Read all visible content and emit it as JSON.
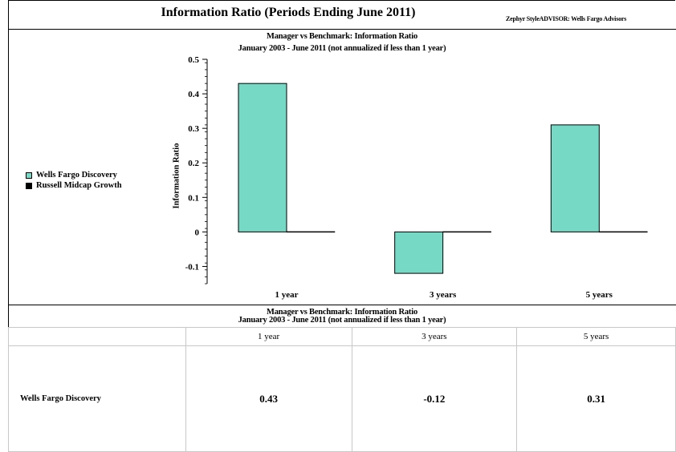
{
  "header": {
    "title": "Information Ratio (Periods Ending June 2011)",
    "brand": "Zephyr StyleADVISOR: Wells Fargo Advisors"
  },
  "chart_subtitle": {
    "line1": "Manager vs Benchmark: Information Ratio",
    "line2": "January 2003 - June 2011 (not annualized if less than 1 year)"
  },
  "table_subtitle": {
    "line1": "Manager vs Benchmark: Information Ratio",
    "line2": "January 2003 - June 2011 (not annualized if less than 1 year)"
  },
  "colors": {
    "fund": "#76d9c6",
    "benchmark": "#000000"
  },
  "chart_data": {
    "type": "bar",
    "title": "Manager vs Benchmark: Information Ratio",
    "subtitle": "January 2003 - June 2011 (not annualized if less than 1 year)",
    "xlabel": "",
    "ylabel": "Information Ratio",
    "categories": [
      "1 year",
      "3 years",
      "5 years"
    ],
    "series": [
      {
        "name": "Wells Fargo Discovery",
        "values": [
          0.43,
          -0.12,
          0.31
        ]
      },
      {
        "name": "Russell Midcap Growth",
        "values": [
          0,
          0,
          0
        ]
      }
    ],
    "ylim": [
      -0.15,
      0.5
    ],
    "yticks": [
      "0.5",
      "0.4",
      "0.3",
      "0.2",
      "0.1",
      "0",
      "-0.1"
    ],
    "legend": "left"
  },
  "table": {
    "columns": [
      "",
      "1 year",
      "3 years",
      "5 years"
    ],
    "rows": [
      {
        "label": "Wells Fargo Discovery",
        "values": [
          "0.43",
          "-0.12",
          "0.31"
        ]
      }
    ]
  }
}
